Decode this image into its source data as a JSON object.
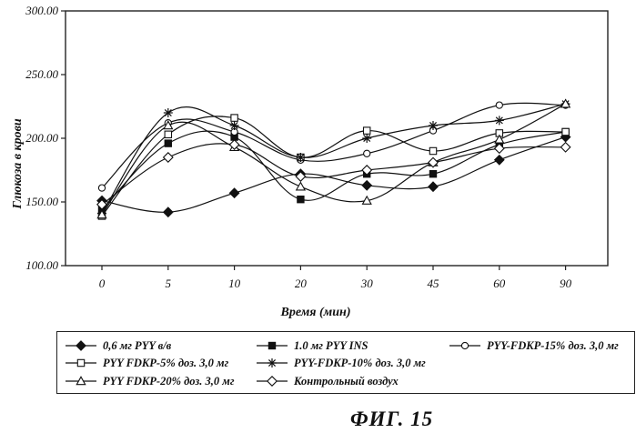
{
  "chart_data": {
    "type": "line",
    "title": "",
    "xlabel": "Время (мин)",
    "ylabel": "Глюкоза в крови",
    "categories": [
      "0",
      "5",
      "10",
      "20",
      "30",
      "45",
      "60",
      "90"
    ],
    "ylim": [
      100,
      300
    ],
    "yticks": [
      "100.00",
      "150.00",
      "200.00",
      "250.00",
      "300.00"
    ],
    "grid": false,
    "legend_position": "bottom",
    "series": [
      {
        "name": "0,6 мг PYY в/в",
        "marker": "diamond-filled",
        "values": [
          151,
          142,
          157,
          172,
          163,
          162,
          183,
          201
        ]
      },
      {
        "name": "1.0 мг PYY INS",
        "marker": "square-filled",
        "values": [
          144,
          196,
          201,
          152,
          172,
          172,
          195,
          205
        ]
      },
      {
        "name": "PYY-FDKP-15% доз. 3,0 мг",
        "marker": "circle-open",
        "values": [
          161,
          212,
          205,
          183,
          188,
          206,
          226,
          226
        ]
      },
      {
        "name": "PYY FDKP-5% доз. 3,0 мг",
        "marker": "square-open",
        "values": [
          139,
          203,
          216,
          185,
          206,
          190,
          204,
          205
        ]
      },
      {
        "name": "PYY-FDKP-10% доз. 3,0 мг",
        "marker": "star",
        "values": [
          141,
          220,
          210,
          185,
          200,
          210,
          214,
          227
        ]
      },
      {
        "name": "PYY FDKP-20% доз. 3,0 мг",
        "marker": "triangle-open",
        "values": [
          140,
          210,
          193,
          162,
          151,
          181,
          199,
          227
        ]
      },
      {
        "name": "Контрольный   воздух",
        "marker": "diamond-open",
        "values": [
          148,
          185,
          195,
          170,
          175,
          181,
          192,
          193
        ]
      }
    ]
  },
  "figure_label": "ФИГ. 15"
}
